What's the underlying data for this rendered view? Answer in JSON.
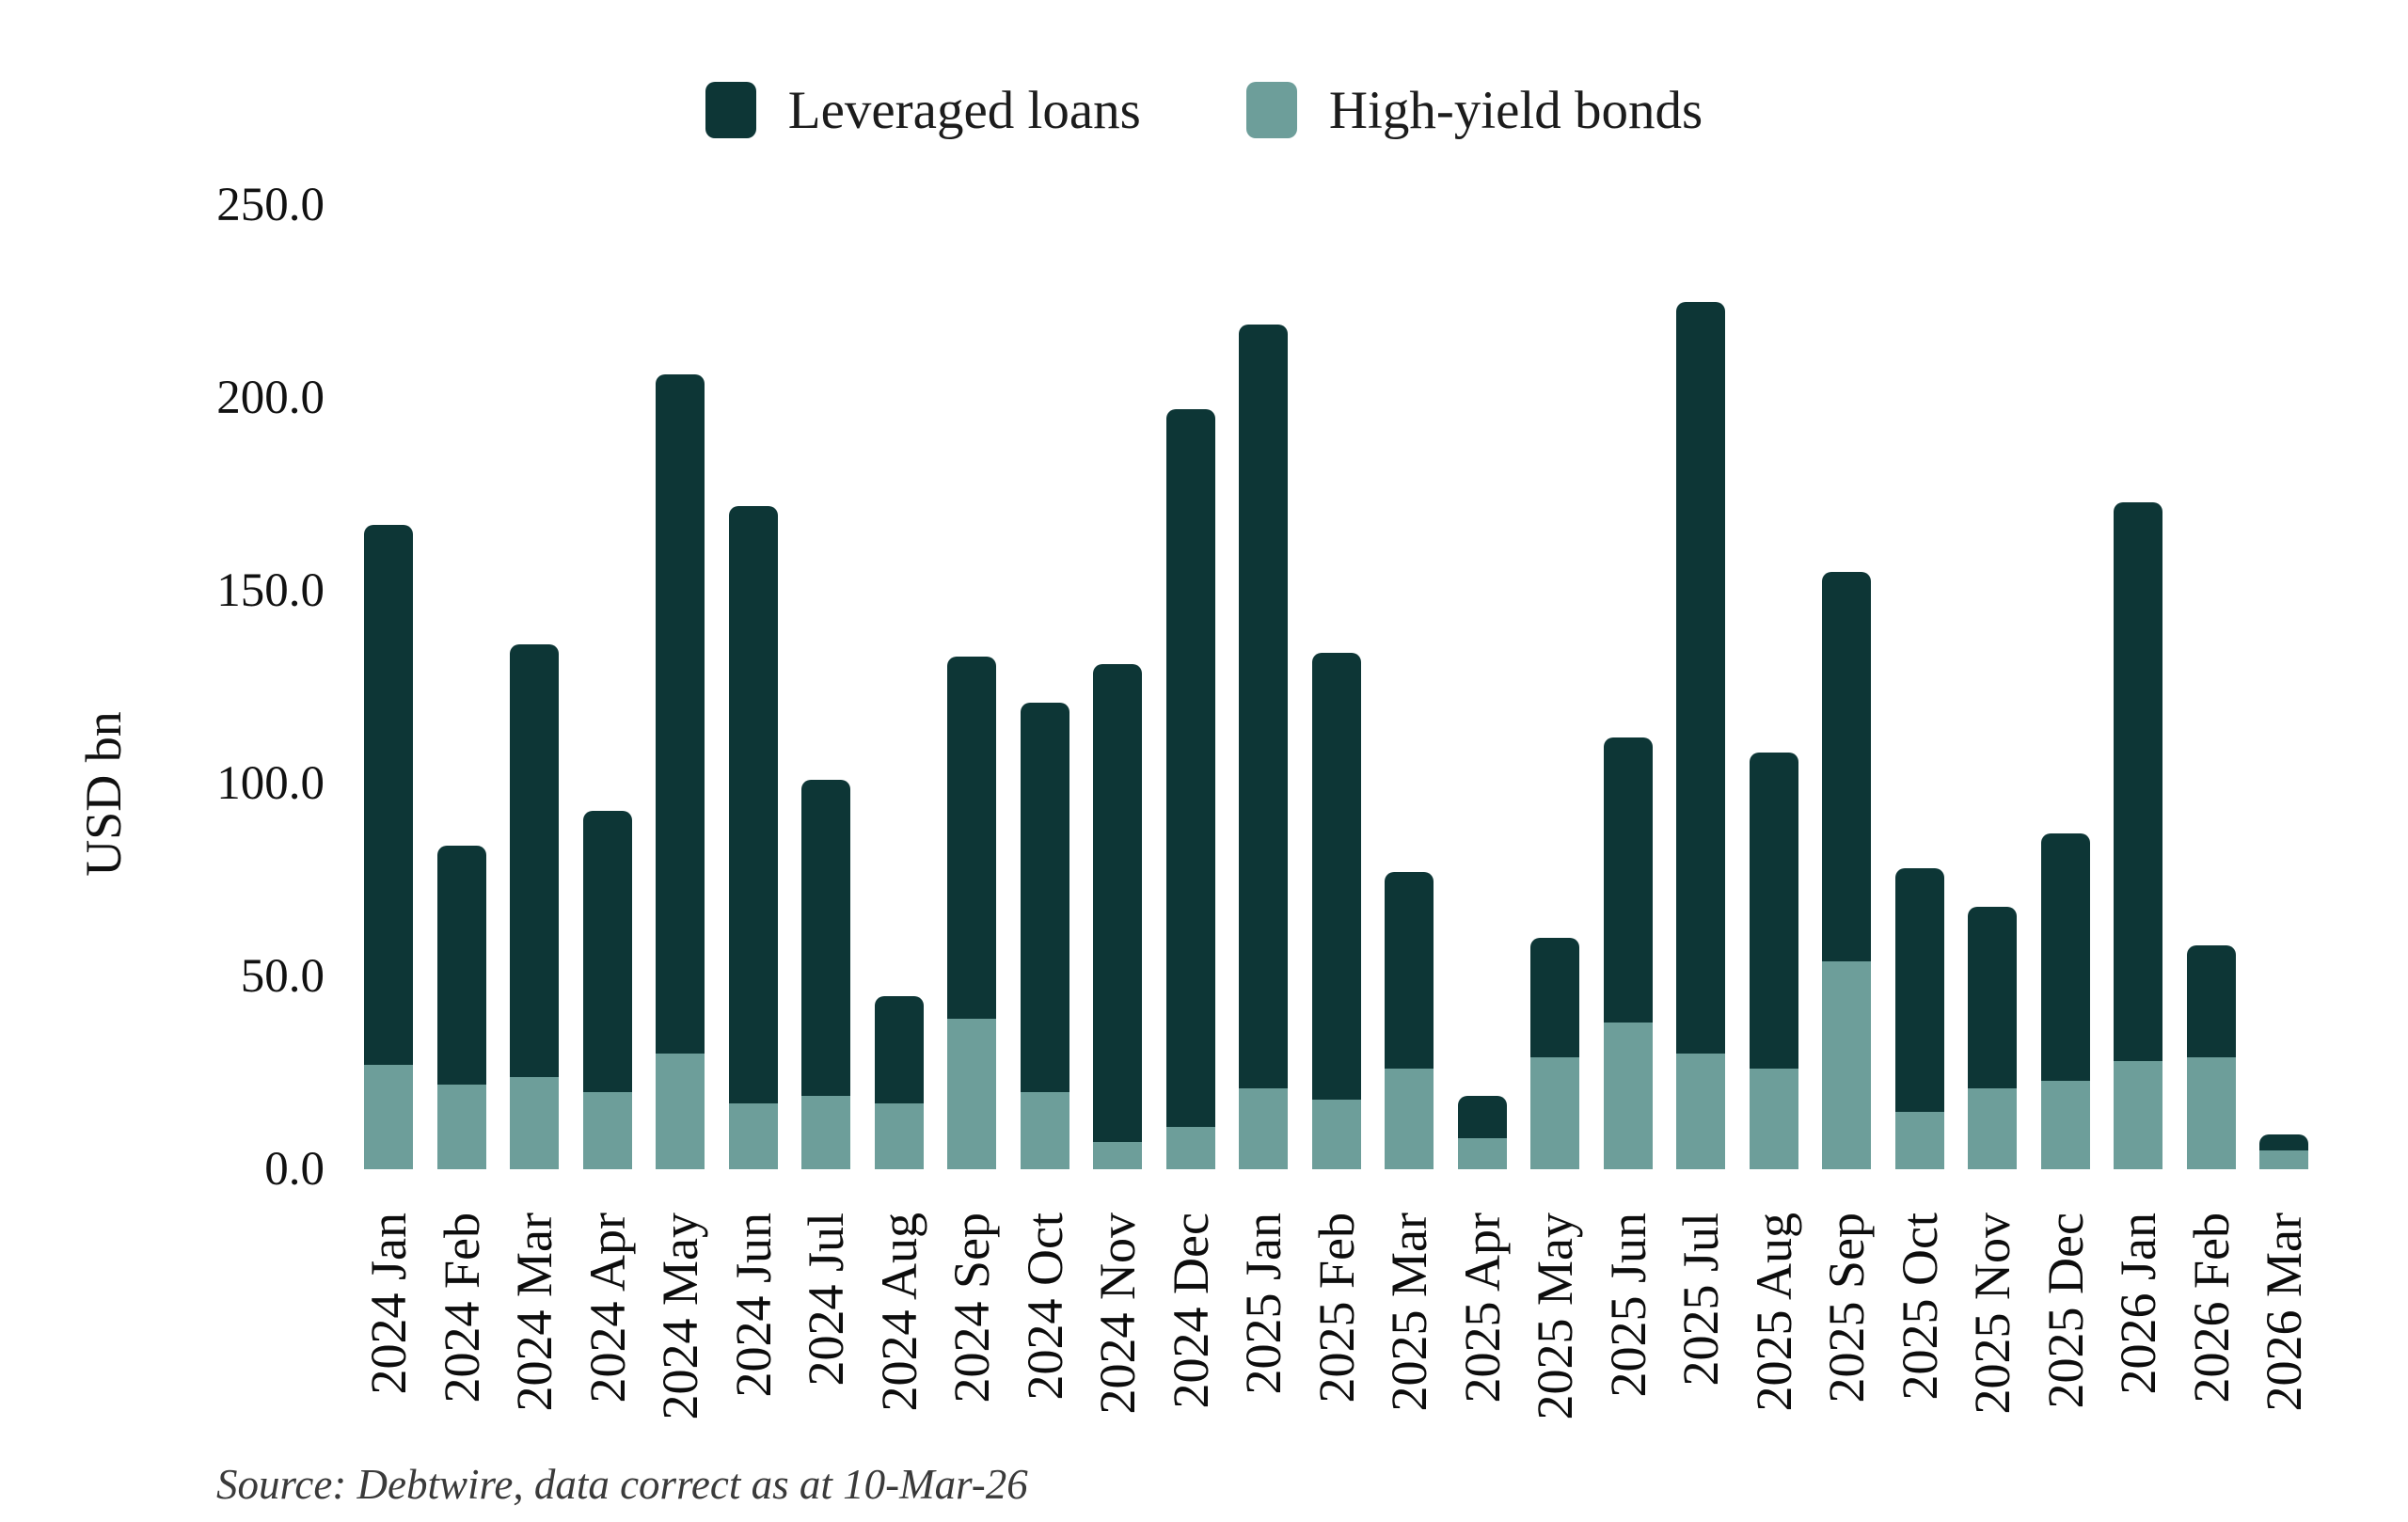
{
  "legend": {
    "items": [
      {
        "label": "Leveraged loans",
        "color": "#0d3636"
      },
      {
        "label": "High-yield bonds",
        "color": "#6d9e9a"
      }
    ]
  },
  "y_axis": {
    "title": "USD bn",
    "tick_labels": [
      "0.0",
      "50.0",
      "100.0",
      "150.0",
      "200.0",
      "250.0"
    ],
    "tick_values": [
      0,
      50,
      100,
      150,
      200,
      250
    ]
  },
  "source": {
    "text": "Source: Debtwire, data correct as at 10-Mar-26"
  },
  "chart_data": {
    "type": "bar",
    "stacked": true,
    "title": "",
    "xlabel": "",
    "ylabel": "USD bn",
    "ylim": [
      0,
      250
    ],
    "grid": false,
    "legend_position": "top-center",
    "stack_order_bottom_to_top": [
      "High-yield bonds",
      "Leveraged loans"
    ],
    "categories": [
      "2024 Jan",
      "2024 Feb",
      "2024 Mar",
      "2024 Apr",
      "2024 May",
      "2024 Jun",
      "2024 Jul",
      "2024 Aug",
      "2024 Sep",
      "2024 Oct",
      "2024 Nov",
      "2024 Dec",
      "2025 Jan",
      "2025 Feb",
      "2025 Mar",
      "2025 Apr",
      "2025 May",
      "2025 Jun",
      "2025 Jul",
      "2025 Aug",
      "2025 Sep",
      "2025 Oct",
      "2025 Nov",
      "2025 Dec",
      "2026 Jan",
      "2026 Feb",
      "2026 Mar"
    ],
    "series": [
      {
        "name": "Leveraged loans",
        "color": "#0d3636",
        "values": [
          140,
          62,
          112,
          73,
          176,
          155,
          82,
          28,
          94,
          101,
          124,
          186,
          198,
          116,
          51,
          11,
          31,
          74,
          195,
          82,
          101,
          63,
          47,
          64,
          145,
          29,
          4
        ]
      },
      {
        "name": "High-yield bonds",
        "color": "#6d9e9a",
        "values": [
          27,
          22,
          24,
          20,
          30,
          17,
          19,
          17,
          39,
          20,
          7,
          11,
          21,
          18,
          26,
          8,
          29,
          38,
          30,
          26,
          54,
          15,
          21,
          23,
          28,
          29,
          5
        ]
      }
    ],
    "totals": [
      167,
      84,
      136,
      93,
      206,
      172,
      101,
      45,
      133,
      121,
      131,
      197,
      219,
      134,
      77,
      19,
      60,
      112,
      225,
      108,
      155,
      78,
      68,
      87,
      173,
      58,
      9
    ]
  }
}
